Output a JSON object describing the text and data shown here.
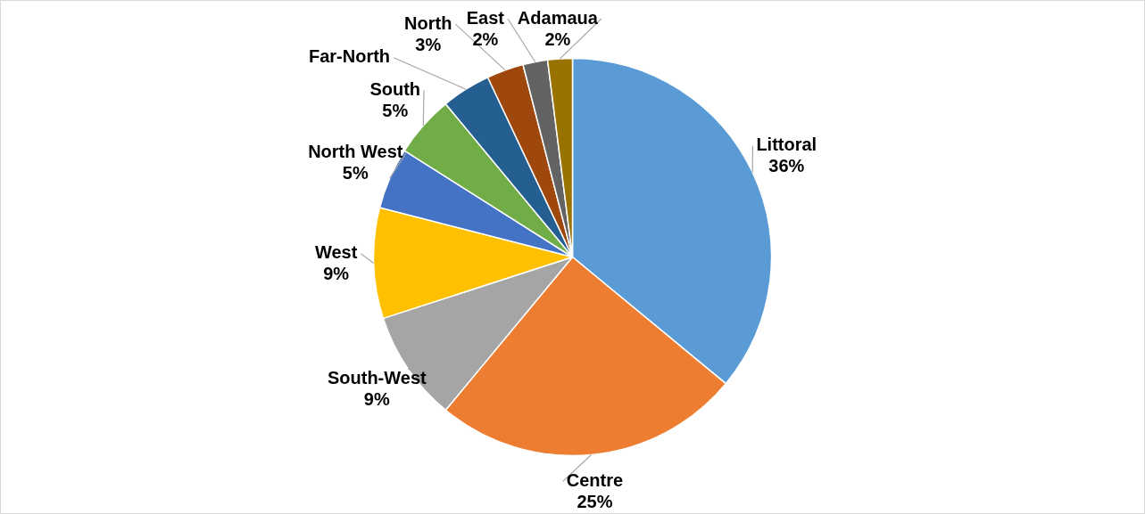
{
  "chart_data": {
    "type": "pie",
    "categories": [
      "Littoral",
      "Centre",
      "South-West",
      "West",
      "North West",
      "South",
      "Far-North",
      "North",
      "East",
      "Adamaua"
    ],
    "values": [
      36,
      25,
      9,
      9,
      5,
      5,
      4,
      3,
      2,
      2
    ],
    "colors": [
      "#5b9bd5",
      "#ed7d31",
      "#a5a5a5",
      "#ffc000",
      "#4472c4",
      "#70ad47",
      "#255e91",
      "#9e480e",
      "#636363",
      "#997300"
    ],
    "value_labels": [
      "36%",
      "25%",
      "9%",
      "9%",
      "5%",
      "5%",
      null,
      "3%",
      "2%",
      "2%"
    ],
    "legend": false
  }
}
